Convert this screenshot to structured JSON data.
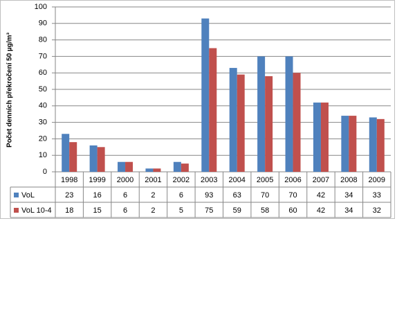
{
  "chart_data": {
    "type": "bar",
    "y_label": "Počet denních překročení 50 µg/m³",
    "categories": [
      "1998",
      "1999",
      "2000",
      "2001",
      "2002",
      "2003",
      "2004",
      "2005",
      "2006",
      "2007",
      "2008",
      "2009"
    ],
    "series": [
      {
        "name": "VoL",
        "color": "#4f81bd",
        "values": [
          23,
          16,
          6,
          2,
          6,
          93,
          63,
          70,
          70,
          42,
          34,
          33
        ]
      },
      {
        "name": "VoL 10-4",
        "color": "#c0504d",
        "values": [
          18,
          15,
          6,
          2,
          5,
          75,
          59,
          58,
          60,
          42,
          34,
          32
        ]
      }
    ],
    "ylim": [
      0,
      100
    ],
    "yticks": [
      0,
      10,
      20,
      30,
      40,
      50,
      60,
      70,
      80,
      90,
      100
    ],
    "grid": true
  }
}
